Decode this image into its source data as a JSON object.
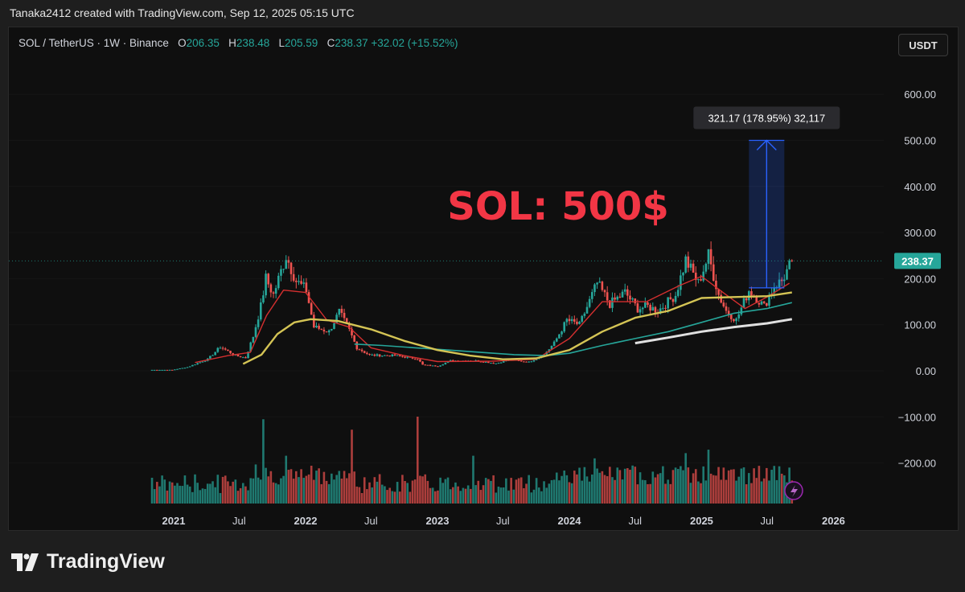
{
  "caption": "Tanaka2412 created with TradingView.com, Sep 12, 2025 05:15 UTC",
  "header": {
    "symbol": "SOL / TetherUS · 1W · Binance",
    "o_label": "O",
    "o_value": "206.35",
    "h_label": "H",
    "h_value": "238.48",
    "l_label": "L",
    "l_value": "205.59",
    "c_label": "C",
    "c_value": "238.37",
    "change": "+32.02 (+15.52%)"
  },
  "currency_button": "USDT",
  "brand": "TradingView",
  "colors": {
    "up": "#26a69a",
    "down": "#ef5350",
    "ma_red": "#d32f2f",
    "ma_yellow": "#d4c455",
    "ma_teal": "#26a69a",
    "ma_white": "#e0e0e0",
    "annotation": "#f23645",
    "measure": "#2962ff"
  },
  "chart_data": {
    "type": "candlestick",
    "ylim": [
      -290,
      680
    ],
    "y_ticks": [
      "600.00",
      "500.00",
      "400.00",
      "300.00",
      "200.00",
      "100.00",
      "0.00",
      "−100.00",
      "−200.00"
    ],
    "x_ticks": [
      "2021",
      "Jul",
      "2022",
      "Jul",
      "2023",
      "Jul",
      "2024",
      "Jul",
      "2025",
      "Jul",
      "2026"
    ],
    "last_price": "238.37",
    "annotation_text": "SOL: 500$",
    "measure": {
      "label": "321.17 (178.95%) 32,117",
      "from_price": 180,
      "to_price": 500,
      "from_date": "2025-05-12",
      "to_date": "2025-08-18"
    },
    "price_path": [
      [
        "2020-11-02",
        2
      ],
      [
        "2020-12-28",
        2
      ],
      [
        "2021-02-08",
        8
      ],
      [
        "2021-04-05",
        25
      ],
      [
        "2021-05-10",
        52
      ],
      [
        "2021-06-21",
        33
      ],
      [
        "2021-07-19",
        28
      ],
      [
        "2021-08-09",
        75
      ],
      [
        "2021-08-30",
        140
      ],
      [
        "2021-09-13",
        200
      ],
      [
        "2021-10-04",
        165
      ],
      [
        "2021-11-08",
        250
      ],
      [
        "2021-12-06",
        195
      ],
      [
        "2022-01-03",
        175
      ],
      [
        "2022-01-24",
        95
      ],
      [
        "2022-03-07",
        85
      ],
      [
        "2022-04-04",
        128
      ],
      [
        "2022-05-02",
        88
      ],
      [
        "2022-05-23",
        50
      ],
      [
        "2022-06-27",
        34
      ],
      [
        "2022-09-05",
        33
      ],
      [
        "2022-11-07",
        26
      ],
      [
        "2022-11-21",
        13
      ],
      [
        "2023-01-02",
        10
      ],
      [
        "2023-02-06",
        22
      ],
      [
        "2023-04-17",
        22
      ],
      [
        "2023-06-12",
        16
      ],
      [
        "2023-07-17",
        24
      ],
      [
        "2023-09-11",
        19
      ],
      [
        "2023-10-23",
        35
      ],
      [
        "2023-11-20",
        60
      ],
      [
        "2023-12-25",
        110
      ],
      [
        "2024-01-29",
        100
      ],
      [
        "2024-03-18",
        190
      ],
      [
        "2024-04-22",
        145
      ],
      [
        "2024-06-03",
        170
      ],
      [
        "2024-07-08",
        135
      ],
      [
        "2024-08-05",
        140
      ],
      [
        "2024-09-02",
        130
      ],
      [
        "2024-10-21",
        165
      ],
      [
        "2024-11-18",
        240
      ],
      [
        "2024-12-23",
        190
      ],
      [
        "2025-01-20",
        250
      ],
      [
        "2025-02-17",
        165
      ],
      [
        "2025-03-10",
        130
      ],
      [
        "2025-04-07",
        110
      ],
      [
        "2025-05-12",
        175
      ],
      [
        "2025-06-23",
        140
      ],
      [
        "2025-07-21",
        185
      ],
      [
        "2025-08-11",
        195
      ],
      [
        "2025-09-08",
        238
      ]
    ],
    "ma_red": [
      [
        "2021-03-01",
        18
      ],
      [
        "2021-06-01",
        33
      ],
      [
        "2021-08-01",
        40
      ],
      [
        "2021-09-15",
        120
      ],
      [
        "2021-11-01",
        175
      ],
      [
        "2022-01-01",
        170
      ],
      [
        "2022-03-01",
        110
      ],
      [
        "2022-05-01",
        95
      ],
      [
        "2022-07-01",
        50
      ],
      [
        "2022-10-01",
        33
      ],
      [
        "2023-01-01",
        20
      ],
      [
        "2023-06-01",
        21
      ],
      [
        "2023-10-01",
        25
      ],
      [
        "2024-01-01",
        70
      ],
      [
        "2024-04-01",
        150
      ],
      [
        "2024-08-01",
        150
      ],
      [
        "2024-11-01",
        185
      ],
      [
        "2025-01-01",
        205
      ],
      [
        "2025-03-01",
        170
      ],
      [
        "2025-05-01",
        135
      ],
      [
        "2025-07-01",
        160
      ],
      [
        "2025-09-01",
        190
      ]
    ],
    "ma_yellow": [
      [
        "2021-07-12",
        15
      ],
      [
        "2021-09-01",
        35
      ],
      [
        "2021-10-15",
        80
      ],
      [
        "2021-12-01",
        105
      ],
      [
        "2022-01-15",
        112
      ],
      [
        "2022-04-01",
        108
      ],
      [
        "2022-07-01",
        90
      ],
      [
        "2022-10-01",
        65
      ],
      [
        "2023-01-01",
        45
      ],
      [
        "2023-04-01",
        33
      ],
      [
        "2023-07-01",
        25
      ],
      [
        "2023-10-01",
        27
      ],
      [
        "2024-01-01",
        45
      ],
      [
        "2024-04-01",
        85
      ],
      [
        "2024-07-01",
        115
      ],
      [
        "2024-10-01",
        130
      ],
      [
        "2025-01-01",
        158
      ],
      [
        "2025-04-01",
        160
      ],
      [
        "2025-07-01",
        162
      ],
      [
        "2025-09-08",
        170
      ]
    ],
    "ma_teal": [
      [
        "2022-05-16",
        58
      ],
      [
        "2022-08-01",
        55
      ],
      [
        "2022-11-01",
        50
      ],
      [
        "2023-02-01",
        45
      ],
      [
        "2023-05-01",
        40
      ],
      [
        "2023-08-01",
        35
      ],
      [
        "2023-10-30",
        33
      ],
      [
        "2024-01-01",
        38
      ],
      [
        "2024-04-01",
        55
      ],
      [
        "2024-07-01",
        70
      ],
      [
        "2024-10-01",
        85
      ],
      [
        "2025-01-01",
        105
      ],
      [
        "2025-04-01",
        125
      ],
      [
        "2025-07-01",
        135
      ],
      [
        "2025-09-08",
        148
      ]
    ],
    "ma_white": [
      [
        "2024-07-01",
        60
      ],
      [
        "2024-10-01",
        72
      ],
      [
        "2025-01-01",
        85
      ],
      [
        "2025-04-01",
        95
      ],
      [
        "2025-07-01",
        103
      ],
      [
        "2025-09-08",
        112
      ]
    ],
    "volume_spikes": [
      [
        "2021-08-16",
        0.45
      ],
      [
        "2021-09-06",
        0.97
      ],
      [
        "2021-11-08",
        0.55
      ],
      [
        "2022-05-09",
        0.85
      ],
      [
        "2022-11-07",
        1.0
      ],
      [
        "2023-04-10",
        0.55
      ],
      [
        "2024-03-11",
        0.52
      ],
      [
        "2024-11-18",
        0.58
      ],
      [
        "2025-01-20",
        0.62
      ]
    ]
  }
}
